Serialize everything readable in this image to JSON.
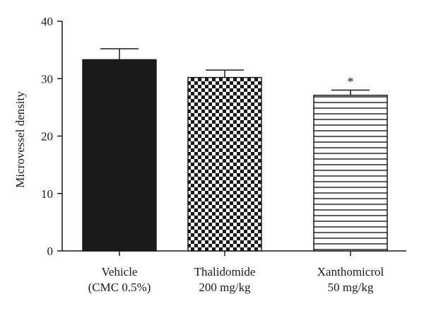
{
  "chart_data": {
    "type": "bar",
    "ylabel": "Microvessel density",
    "xlabel": "",
    "ylim": [
      0,
      40
    ],
    "yticks": [
      0,
      10,
      20,
      30,
      40
    ],
    "categories": [
      [
        "Vehicle",
        "(CMC 0.5%)"
      ],
      [
        "Thalidomide",
        "200 mg/kg"
      ],
      [
        "Xanthomicrol",
        "50 mg/kg"
      ]
    ],
    "values": [
      33.3,
      30.2,
      27.1
    ],
    "errors": [
      1.9,
      1.3,
      0.9
    ],
    "fills": [
      "solid",
      "checkerboard",
      "horizontal-stripes"
    ],
    "annotations": [
      "",
      "",
      "*"
    ],
    "colors": {
      "ink": "#1a1a1a",
      "background": "#ffffff"
    }
  }
}
